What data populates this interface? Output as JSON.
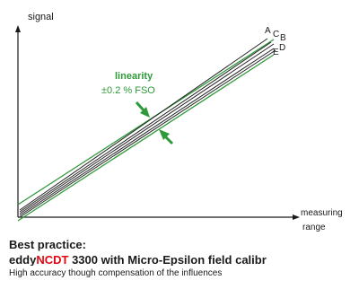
{
  "colors": {
    "axis": "#1a1a1a",
    "green": "#2e9a3a",
    "curves": "#222222",
    "brand_accent": "#e30613"
  },
  "diagram": {
    "y_axis_label": "signal",
    "x_axis_label_line1": "measuring",
    "x_axis_label_line2": "range",
    "linearity_label": "linearity",
    "linearity_value": "±0.2 % FSO",
    "curve_labels": [
      "A",
      "B",
      "C",
      "D",
      "E"
    ]
  },
  "caption": {
    "heading": "Best practice:",
    "product_prefix": "eddy",
    "product_brand": "NCDT",
    "product_suffix": " 3300 with Micro-Epsilon field calibr",
    "subtext": "High accuracy though compensation of the influences"
  }
}
